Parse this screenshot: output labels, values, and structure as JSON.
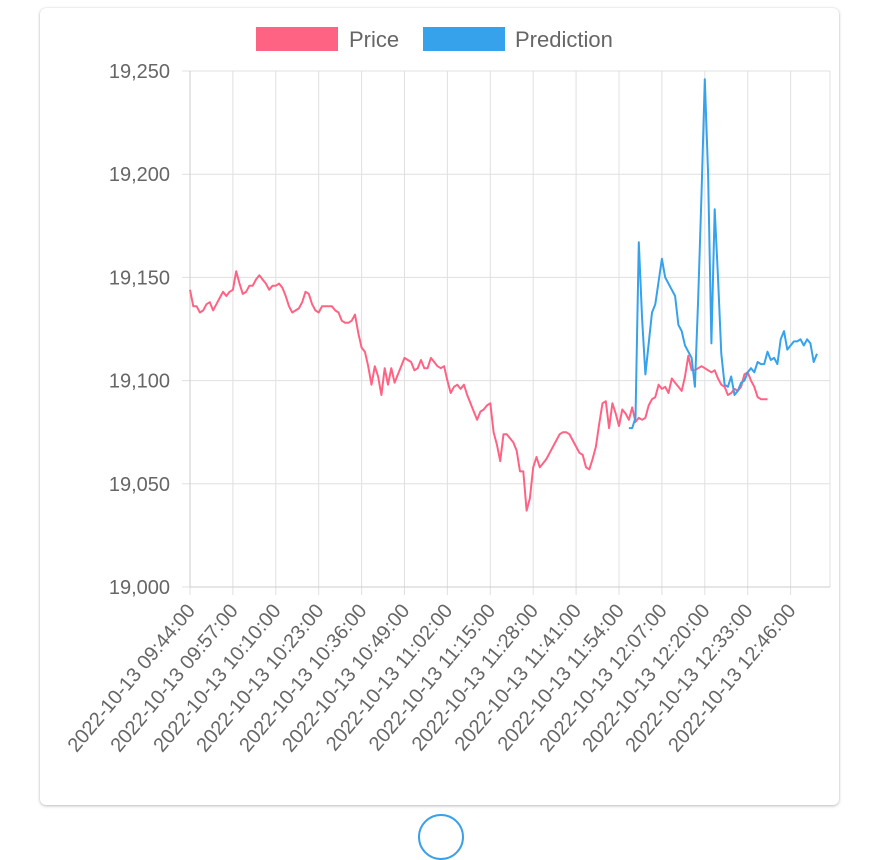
{
  "chart_data": {
    "type": "line",
    "title": "",
    "xlabel": "",
    "ylabel": "",
    "ylim": [
      19000,
      19250
    ],
    "yticks": [
      19000,
      19050,
      19100,
      19150,
      19200,
      19250
    ],
    "ytick_labels": [
      "19,000",
      "19,050",
      "19,100",
      "19,150",
      "19,200",
      "19,250"
    ],
    "xtick_labels": [
      "2022-10-13 09:44:00",
      "2022-10-13 09:57:00",
      "2022-10-13 10:10:00",
      "2022-10-13 10:23:00",
      "2022-10-13 10:36:00",
      "2022-10-13 10:49:00",
      "2022-10-13 11:02:00",
      "2022-10-13 11:15:00",
      "2022-10-13 11:28:00",
      "2022-10-13 11:41:00",
      "2022-10-13 11:54:00",
      "2022-10-13 12:07:00",
      "2022-10-13 12:20:00",
      "2022-10-13 12:33:00",
      "2022-10-13 12:46:00"
    ],
    "x_start": "2022-10-13 09:44:00",
    "x_end": "2022-10-13 12:59:00",
    "x_interval_minutes": 1,
    "grid": true,
    "legend_position": "top",
    "series": [
      {
        "name": "Price",
        "color": "#ff6384",
        "start_index": 0,
        "values": [
          19144,
          19136,
          19136,
          19133,
          19134,
          19137,
          19138,
          19134,
          19137,
          19140,
          19143,
          19141,
          19143,
          19144,
          19153,
          19147,
          19142,
          19143,
          19146,
          19146,
          19149,
          19151,
          19149,
          19147,
          19144,
          19146,
          19146,
          19147,
          19145,
          19141,
          19136,
          19133,
          19134,
          19135,
          19138,
          19143,
          19142,
          19137,
          19134,
          19133,
          19136,
          19136,
          19136,
          19136,
          19134,
          19133,
          19129,
          19128,
          19128,
          19129,
          19132,
          19123,
          19116,
          19114,
          19107,
          19098,
          19107,
          19102,
          19093,
          19106,
          19098,
          19106,
          19099,
          19103,
          19107,
          19111,
          19110,
          19109,
          19105,
          19106,
          19110,
          19106,
          19106,
          19111,
          19109,
          19107,
          19106,
          19107,
          19100,
          19094,
          19097,
          19098,
          19096,
          19098,
          19093,
          19089,
          19085,
          19081,
          19085,
          19086,
          19088,
          19089,
          19075,
          19069,
          19061,
          19074,
          19074,
          19072,
          19070,
          19066,
          19056,
          19056,
          19037,
          19043,
          19058,
          19063,
          19058,
          19060,
          19062,
          19065,
          19068,
          19071,
          19074,
          19075,
          19075,
          19074,
          19071,
          19068,
          19065,
          19064,
          19058,
          19057,
          19062,
          19068,
          19079,
          19089,
          19090,
          19077,
          19089,
          19084,
          19078,
          19086,
          19084,
          19081,
          19087,
          19080,
          19082,
          19081,
          19082,
          19088,
          19091,
          19092,
          19098,
          19096,
          19097,
          19094,
          19101,
          19099,
          19097,
          19095,
          19102,
          19112,
          19105,
          19105,
          19106,
          19107,
          19106,
          19105,
          19104,
          19105,
          19101,
          19098,
          19097,
          19093,
          19094,
          19096,
          19095,
          19097,
          19103,
          19104,
          19100,
          19097,
          19092,
          19091,
          19091,
          19091
        ]
      },
      {
        "name": "Prediction",
        "color": "#36a2eb",
        "start_index": 133,
        "values": [
          19077,
          19077,
          19082,
          19167,
          19130,
          19103,
          19118,
          19133,
          19137,
          19148,
          19159,
          19150,
          19147,
          19144,
          19141,
          19127,
          19124,
          19117,
          19114,
          19111,
          19097,
          19140,
          19190,
          19246,
          19200,
          19118,
          19183,
          19150,
          19113,
          19098,
          19097,
          19102,
          19093,
          19095,
          19099,
          19100,
          19104,
          19106,
          19104,
          19109,
          19108,
          19108,
          19114,
          19110,
          19111,
          19108,
          19120,
          19124,
          19115,
          19117,
          19119,
          19119,
          19120,
          19117,
          19120,
          19118,
          19109,
          19113
        ]
      }
    ]
  }
}
